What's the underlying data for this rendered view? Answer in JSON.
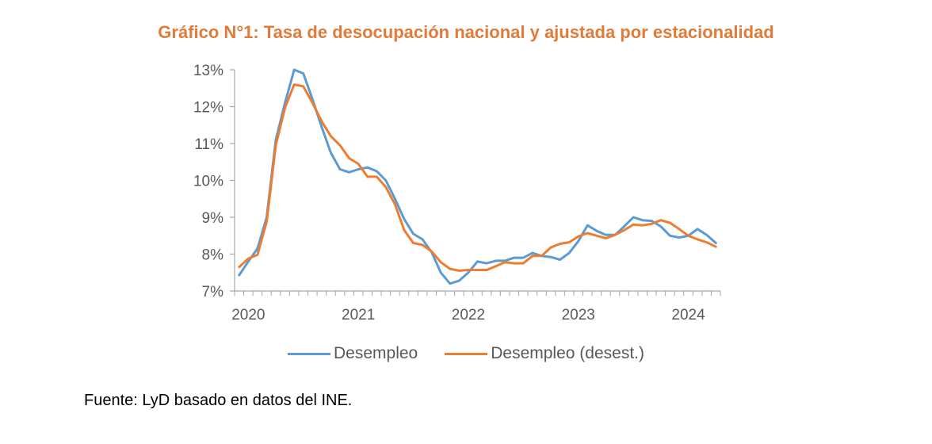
{
  "chart_data": {
    "type": "line",
    "title": "Gráfico N°1: Tasa de desocupación nacional y ajustada por estacionalidad",
    "xlabel": "",
    "ylabel": "",
    "ylim": [
      7,
      13
    ],
    "y_ticks": [
      "7%",
      "8%",
      "9%",
      "10%",
      "11%",
      "12%",
      "13%"
    ],
    "y_tick_values": [
      7,
      8,
      9,
      10,
      11,
      12,
      13
    ],
    "x_tick_labels": [
      "2020",
      "2021",
      "2022",
      "2023",
      "2024"
    ],
    "x_tick_label_index": [
      1,
      13,
      25,
      37,
      49
    ],
    "n_points": 53,
    "grid": false,
    "legend_position": "bottom",
    "series": [
      {
        "name": "Desempleo",
        "color": "#5B9BD5",
        "values": [
          7.43,
          7.8,
          8.15,
          9.0,
          11.1,
          12.1,
          13.0,
          12.9,
          12.2,
          11.45,
          10.75,
          10.3,
          10.22,
          10.3,
          10.35,
          10.25,
          10.0,
          9.5,
          8.95,
          8.55,
          8.4,
          8.05,
          7.5,
          7.2,
          7.28,
          7.5,
          7.8,
          7.75,
          7.82,
          7.82,
          7.9,
          7.9,
          8.03,
          7.95,
          7.92,
          7.85,
          8.03,
          8.35,
          8.78,
          8.63,
          8.52,
          8.52,
          8.75,
          9.0,
          8.92,
          8.9,
          8.75,
          8.5,
          8.45,
          8.5,
          8.68,
          8.52,
          8.3
        ]
      },
      {
        "name": "Desempleo (desest.)",
        "color": "#ED7D31",
        "values": [
          7.65,
          7.88,
          7.98,
          8.88,
          10.95,
          11.97,
          12.6,
          12.55,
          12.1,
          11.6,
          11.2,
          10.95,
          10.6,
          10.45,
          10.1,
          10.1,
          9.82,
          9.35,
          8.65,
          8.3,
          8.25,
          8.07,
          7.78,
          7.6,
          7.55,
          7.57,
          7.57,
          7.57,
          7.67,
          7.78,
          7.75,
          7.75,
          7.95,
          7.95,
          8.18,
          8.28,
          8.32,
          8.48,
          8.57,
          8.5,
          8.43,
          8.52,
          8.65,
          8.8,
          8.78,
          8.82,
          8.92,
          8.85,
          8.68,
          8.5,
          8.4,
          8.32,
          8.2
        ]
      }
    ]
  },
  "source": "Fuente: LyD basado en datos del INE."
}
